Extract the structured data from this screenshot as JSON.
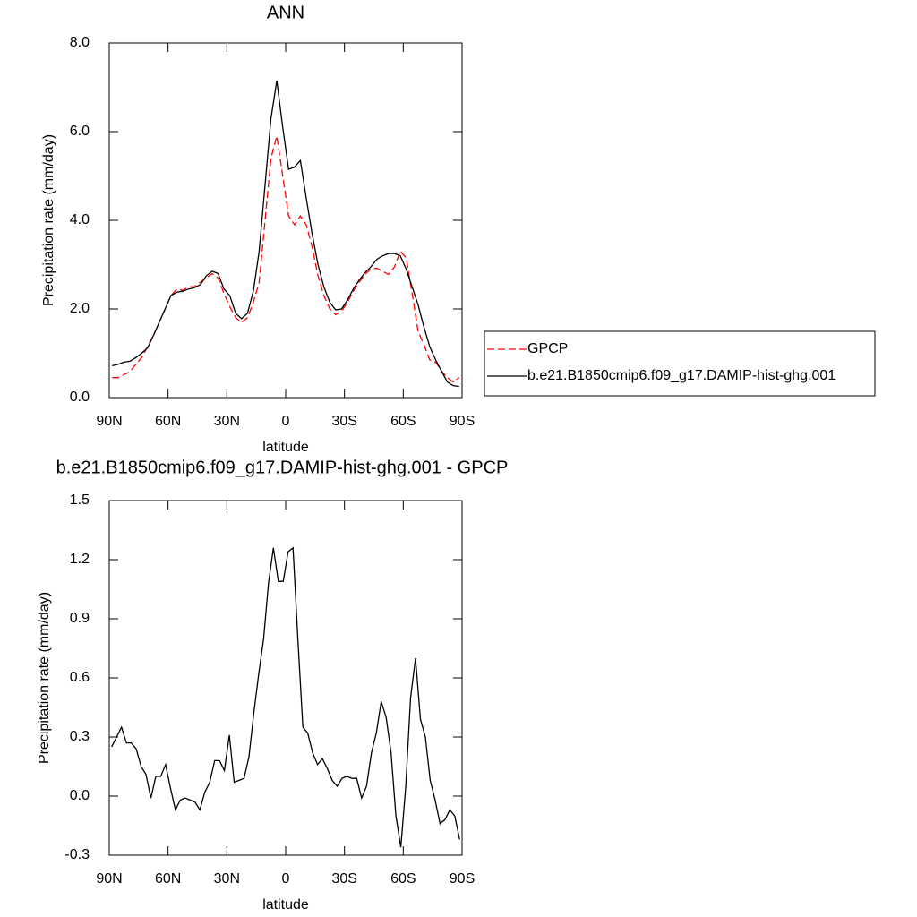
{
  "chart_data": [
    {
      "type": "line",
      "title": "ANN",
      "xlabel": "latitude",
      "ylabel": "Precipitation rate (mm/day)",
      "x": [
        88.5,
        85.5,
        82.5,
        79.5,
        76.5,
        73.5,
        70.5,
        67.5,
        64.5,
        61.5,
        58.5,
        55.5,
        52.5,
        49.5,
        46.5,
        43.5,
        40.5,
        37.5,
        34.5,
        31.5,
        28.5,
        25.5,
        22.5,
        19.5,
        16.5,
        13.5,
        10.5,
        7.5,
        4.5,
        1.5,
        -1.5,
        -4.5,
        -7.5,
        -10.5,
        -13.5,
        -16.5,
        -19.5,
        -22.5,
        -25.5,
        -28.5,
        -31.5,
        -34.5,
        -37.5,
        -40.5,
        -43.5,
        -46.5,
        -49.5,
        -52.5,
        -55.5,
        -58.5,
        -61.5,
        -64.5,
        -67.5,
        -70.5,
        -73.5,
        -76.5,
        -79.5,
        -82.5,
        -85.5,
        -88.5
      ],
      "series": [
        {
          "name": "GPCP",
          "color": "#ff0000",
          "dash": "dashed",
          "values": [
            0.45,
            0.45,
            0.52,
            0.58,
            0.75,
            0.9,
            1.15,
            1.4,
            1.7,
            2.0,
            2.3,
            2.45,
            2.42,
            2.5,
            2.5,
            2.6,
            2.7,
            2.8,
            2.7,
            2.35,
            2.05,
            1.8,
            1.7,
            1.8,
            2.15,
            2.6,
            4.0,
            5.4,
            5.9,
            5.0,
            4.1,
            3.9,
            4.1,
            3.9,
            3.4,
            2.75,
            2.3,
            2.0,
            1.87,
            1.95,
            2.15,
            2.4,
            2.6,
            2.78,
            2.9,
            2.92,
            2.85,
            2.78,
            2.95,
            3.3,
            3.15,
            2.35,
            1.5,
            1.2,
            0.85,
            0.8,
            0.6,
            0.45,
            0.35,
            0.45
          ]
        },
        {
          "name": "b.e21.B1850cmip6.f09_g17.DAMIP-hist-ghg.001",
          "color": "#000000",
          "dash": "solid",
          "values": [
            0.72,
            0.75,
            0.8,
            0.82,
            0.9,
            1.0,
            1.12,
            1.4,
            1.7,
            2.0,
            2.3,
            2.38,
            2.4,
            2.45,
            2.48,
            2.55,
            2.75,
            2.85,
            2.8,
            2.45,
            2.3,
            1.9,
            1.78,
            1.9,
            2.4,
            3.3,
            4.8,
            6.3,
            7.15,
            6.1,
            5.15,
            5.2,
            5.35,
            4.5,
            3.7,
            3.0,
            2.5,
            2.15,
            1.98,
            2.0,
            2.2,
            2.45,
            2.65,
            2.82,
            2.95,
            3.12,
            3.2,
            3.25,
            3.25,
            3.2,
            2.9,
            2.5,
            2.1,
            1.6,
            1.15,
            0.85,
            0.6,
            0.35,
            0.27,
            0.25
          ]
        }
      ],
      "xlim": [
        90,
        -90
      ],
      "xticks": [
        {
          "value": 90,
          "label": "90N"
        },
        {
          "value": 60,
          "label": "60N"
        },
        {
          "value": 30,
          "label": "30N"
        },
        0,
        {
          "value": -30,
          "label": "30S"
        },
        {
          "value": -60,
          "label": "60S"
        },
        {
          "value": -90,
          "label": "90S"
        }
      ],
      "ylim": [
        0,
        8
      ],
      "yticks": [
        {
          "value": 0,
          "label": "0.0"
        },
        {
          "value": 2,
          "label": "2.0"
        },
        {
          "value": 4,
          "label": "4.0"
        },
        {
          "value": 6,
          "label": "6.0"
        },
        {
          "value": 8,
          "label": "8.0"
        }
      ],
      "legend": "right"
    },
    {
      "type": "line",
      "title": "b.e21.B1850cmip6.f09_g17.DAMIP-hist-ghg.001 - GPCP",
      "xlabel": "latitude",
      "ylabel": "Precipitation rate (mm/day)",
      "x": [
        88.75,
        86.25,
        83.75,
        81.25,
        78.75,
        76.25,
        73.75,
        71.25,
        68.75,
        66.25,
        63.75,
        61.25,
        58.75,
        56.25,
        53.75,
        51.25,
        48.75,
        46.25,
        43.75,
        41.25,
        38.75,
        36.25,
        33.75,
        31.25,
        28.75,
        26.25,
        23.75,
        21.25,
        18.75,
        16.25,
        13.75,
        11.25,
        8.75,
        6.25,
        3.75,
        1.25,
        -1.25,
        -3.75,
        -6.25,
        -8.75,
        -11.25,
        -13.75,
        -16.25,
        -18.75,
        -21.25,
        -23.75,
        -26.25,
        -28.75,
        -31.25,
        -33.75,
        -36.25,
        -38.75,
        -41.25,
        -43.75,
        -46.25,
        -48.75,
        -51.25,
        -53.75,
        -56.25,
        -58.75,
        -61.25,
        -63.75,
        -66.25,
        -68.75,
        -71.25,
        -73.75,
        -76.25,
        -78.75,
        -81.25,
        -83.75,
        -86.25,
        -88.75
      ],
      "values": [
        0.25,
        0.3,
        0.35,
        0.27,
        0.27,
        0.24,
        0.15,
        0.11,
        -0.01,
        0.1,
        0.1,
        0.16,
        0.04,
        -0.07,
        -0.02,
        -0.01,
        -0.02,
        -0.03,
        -0.07,
        0.02,
        0.07,
        0.18,
        0.18,
        0.13,
        0.31,
        0.07,
        0.08,
        0.09,
        0.2,
        0.42,
        0.62,
        0.8,
        1.08,
        1.26,
        1.09,
        1.09,
        1.24,
        1.26,
        0.79,
        0.35,
        0.32,
        0.22,
        0.16,
        0.19,
        0.14,
        0.08,
        0.05,
        0.09,
        0.1,
        0.09,
        0.09,
        -0.01,
        0.05,
        0.22,
        0.32,
        0.48,
        0.4,
        0.22,
        -0.1,
        -0.26,
        0.05,
        0.5,
        0.7,
        0.39,
        0.3,
        0.08,
        -0.02,
        -0.14,
        -0.12,
        -0.07,
        -0.1,
        -0.22
      ],
      "color": "#000000",
      "xlim": [
        90,
        -90
      ],
      "xticks": [
        {
          "value": 90,
          "label": "90N"
        },
        {
          "value": 60,
          "label": "60N"
        },
        {
          "value": 30,
          "label": "30N"
        },
        0,
        {
          "value": -30,
          "label": "30S"
        },
        {
          "value": -60,
          "label": "60S"
        },
        {
          "value": -90,
          "label": "90S"
        }
      ],
      "ylim": [
        -0.3,
        1.5
      ],
      "yticks": [
        -0.3,
        {
          "value": 0,
          "label": "0.0"
        },
        0.3,
        0.6,
        0.9,
        1.2,
        1.5
      ]
    }
  ]
}
